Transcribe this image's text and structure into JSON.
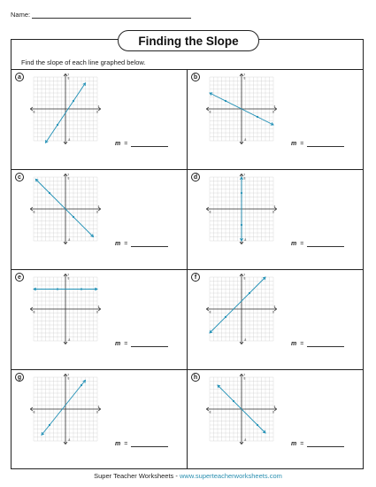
{
  "header": {
    "name_label": "Name:"
  },
  "title": "Finding the Slope",
  "instructions": "Find the slope of each line graphed below.",
  "graph_labels": {
    "y_axis": "y",
    "x_axis": "x",
    "pos": "8",
    "neg": "-8"
  },
  "answer": {
    "m": "m",
    "eq": "="
  },
  "colors": {
    "line": "#1e8fb5",
    "grid": "#c8c8c8",
    "axis": "#333333"
  },
  "problems": [
    {
      "label": "a",
      "x1": -2,
      "y1": -4,
      "x2": 2,
      "y2": 2,
      "start": [
        -5,
        -8.5
      ],
      "end": [
        5,
        6.5
      ]
    },
    {
      "label": "b",
      "x1": -4,
      "y1": 2,
      "x2": 4,
      "y2": -2,
      "start": [
        -8,
        4
      ],
      "end": [
        8,
        -4
      ]
    },
    {
      "label": "c",
      "x1": -4,
      "y1": 4,
      "x2": 2,
      "y2": -2,
      "start": [
        -7.5,
        7.5
      ],
      "end": [
        7,
        -7
      ]
    },
    {
      "label": "d",
      "x1": 0,
      "y1": 4,
      "x2": 0,
      "y2": -4,
      "start": [
        0,
        8
      ],
      "end": [
        0,
        -8
      ],
      "vertical": true
    },
    {
      "label": "e",
      "x1": -2,
      "y1": 5,
      "x2": 4,
      "y2": 5,
      "start": [
        -8,
        5
      ],
      "end": [
        8,
        5
      ]
    },
    {
      "label": "f",
      "x1": -4,
      "y1": -2,
      "x2": 2,
      "y2": 4,
      "start": [
        -8,
        -6
      ],
      "end": [
        6,
        8
      ]
    },
    {
      "label": "g",
      "x1": -4,
      "y1": -4,
      "x2": 4,
      "y2": 6,
      "start": [
        -6,
        -6.5
      ],
      "end": [
        5,
        7.25
      ]
    },
    {
      "label": "h",
      "x1": -2,
      "y1": 2,
      "x2": 4,
      "y2": -4,
      "start": [
        -6,
        6
      ],
      "end": [
        6,
        -6
      ]
    }
  ],
  "footer": {
    "brand": "Super Teacher Worksheets - ",
    "url": "www.superteacherworksheets.com"
  }
}
